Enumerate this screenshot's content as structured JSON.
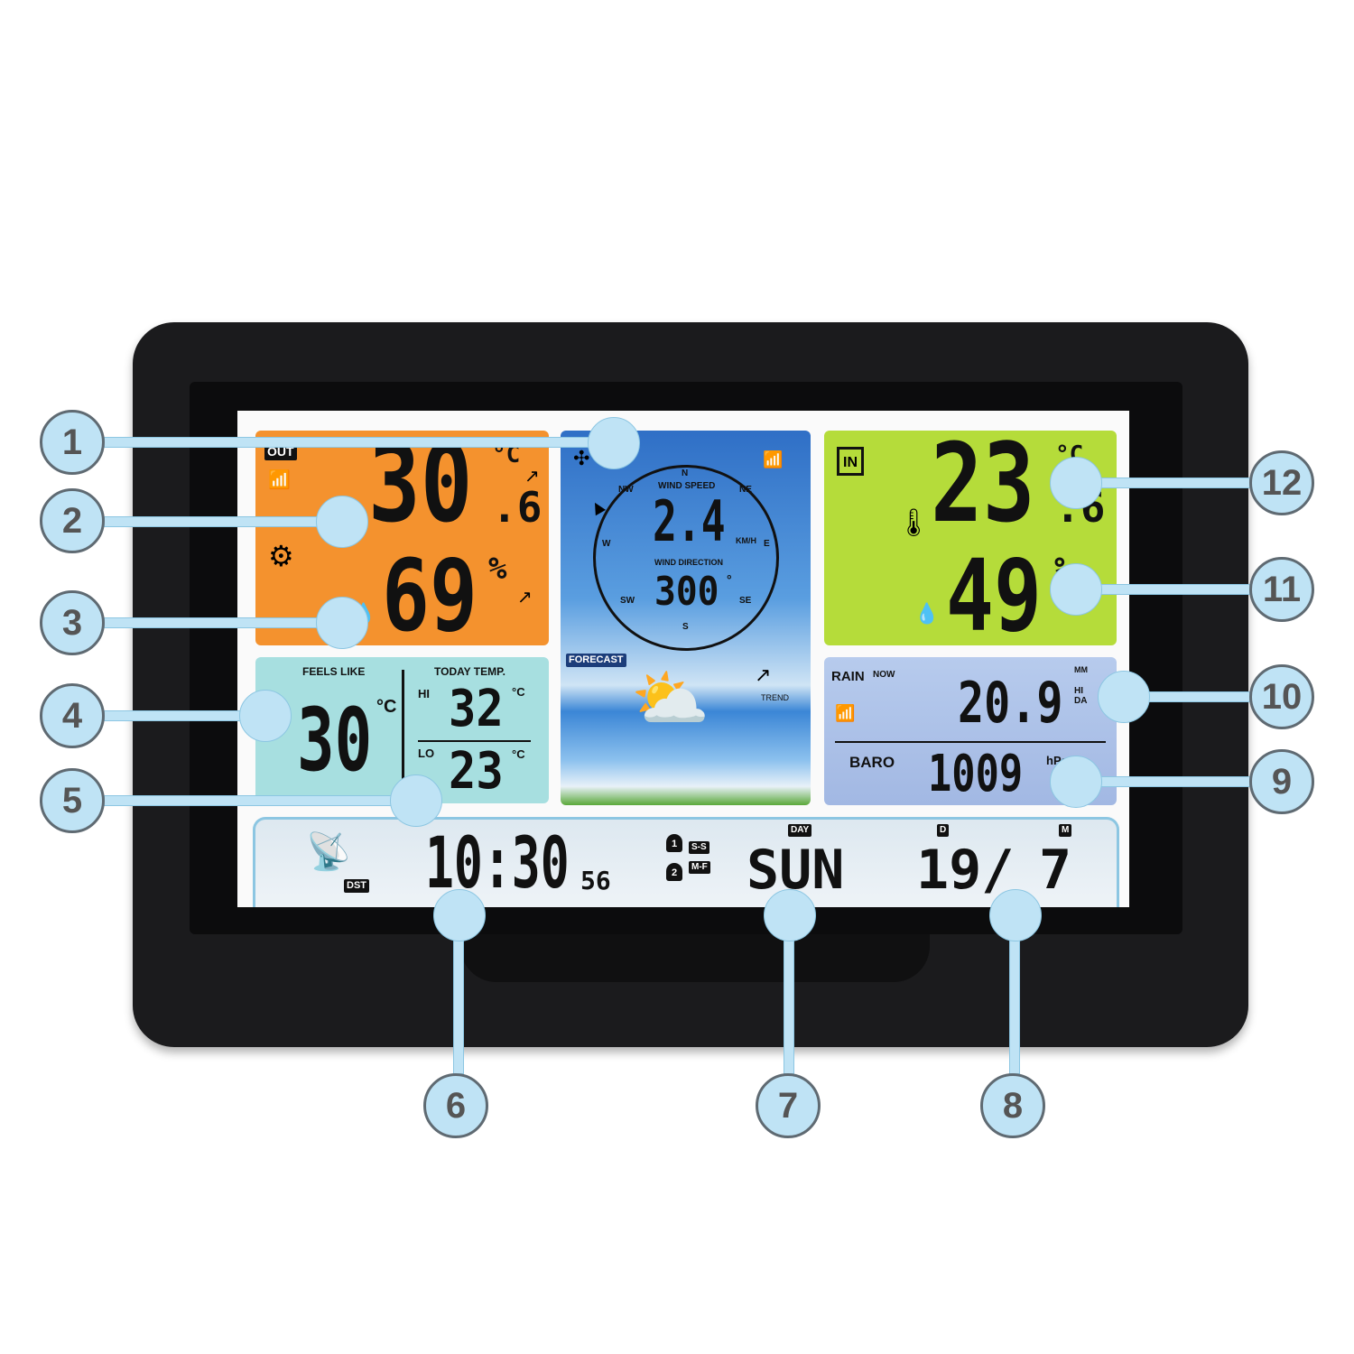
{
  "outdoor": {
    "tag": "OUT",
    "temperature": "30",
    "temperature_decimal": ".6",
    "temp_unit": "°C",
    "humidity": "69",
    "humidity_unit": "%",
    "trend_temp": "up",
    "trend_humidity": "up",
    "color": "#f4922e"
  },
  "wind": {
    "speed_label": "WIND SPEED",
    "speed": "2.4",
    "speed_unit": "KM/H",
    "direction_label": "WIND DIRECTION",
    "direction": "300",
    "direction_unit": "°",
    "compass": [
      "N",
      "NE",
      "E",
      "SE",
      "S",
      "SW",
      "W",
      "NW"
    ]
  },
  "forecast": {
    "label": "FORECAST",
    "trend_label": "TREND",
    "condition": "partly-cloudy"
  },
  "indoor": {
    "tag": "IN",
    "temperature": "23",
    "temperature_decimal": ".6",
    "temp_unit": "°C",
    "humidity": "49",
    "humidity_unit": "%",
    "trend_humidity": "down",
    "color": "#b5dc3a"
  },
  "feels_like": {
    "label": "FEELS LIKE",
    "value": "30",
    "unit": "°C"
  },
  "today_temp": {
    "label": "TODAY TEMP.",
    "hi_label": "HI",
    "hi": "32",
    "lo_label": "LO",
    "lo": "23",
    "unit": "°C"
  },
  "rain": {
    "label": "RAIN",
    "sub_label": "NOW",
    "value": "20.9",
    "unit": "MM",
    "period": "HI DA"
  },
  "baro": {
    "label": "BARO",
    "value": "1009",
    "unit": "hPa"
  },
  "clock": {
    "dst": "DST",
    "time": "10:30",
    "seconds": "56",
    "alarm1": "S-S",
    "alarm2": "M-F",
    "alarm1_num": "1",
    "alarm2_num": "2",
    "day_label": "DAY",
    "day": "SUN",
    "d_label": "D",
    "date_day": "19/",
    "m_label": "M",
    "date_month": "7"
  },
  "callouts": [
    "1",
    "2",
    "3",
    "4",
    "5",
    "6",
    "7",
    "8",
    "9",
    "10",
    "11",
    "12"
  ]
}
